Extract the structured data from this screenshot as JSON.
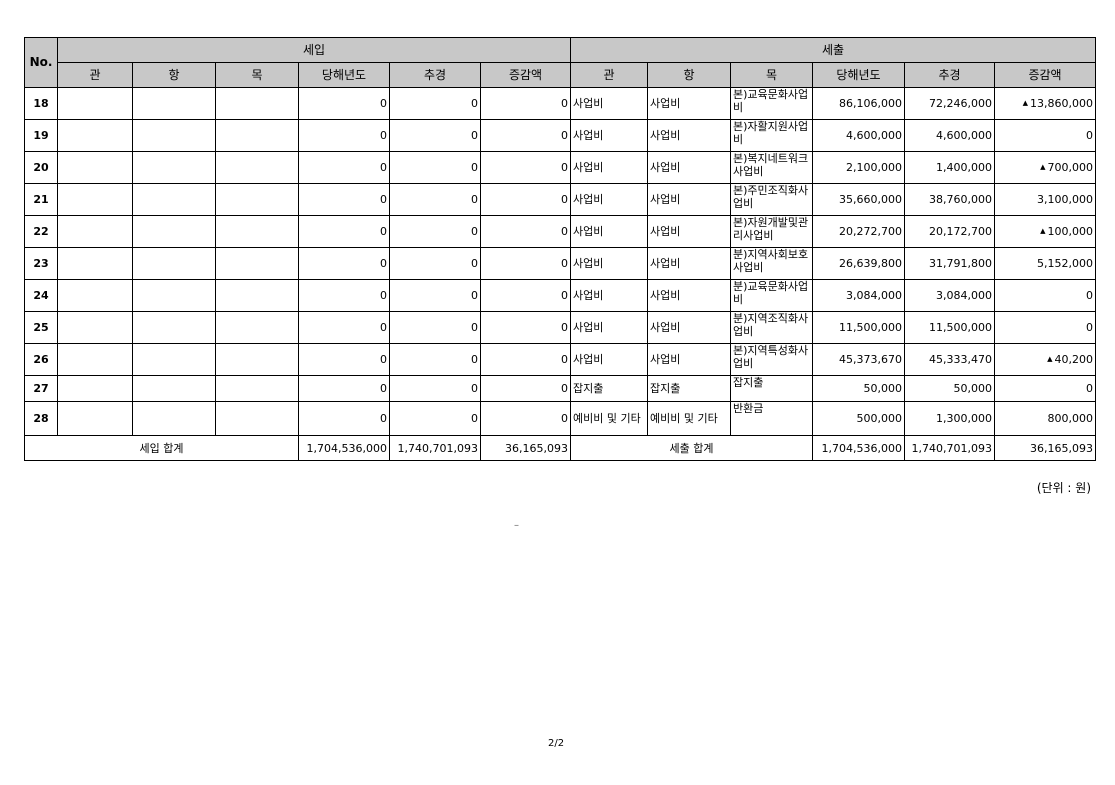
{
  "header": {
    "no": "No.",
    "income": "세입",
    "expense": "세출",
    "cols": [
      "관",
      "항",
      "목",
      "당해년도",
      "추경",
      "증감액"
    ]
  },
  "rows": [
    {
      "no": "18",
      "in_cur": "0",
      "in_sup": "0",
      "in_diff": "0",
      "gwan": "사업비",
      "hang": "사업비",
      "mok": "본)교육문화사업비",
      "cur": "86,106,000",
      "sup": "72,246,000",
      "diff": "13,860,000",
      "dec": true
    },
    {
      "no": "19",
      "in_cur": "0",
      "in_sup": "0",
      "in_diff": "0",
      "gwan": "사업비",
      "hang": "사업비",
      "mok": "본)자활지원사업비",
      "cur": "4,600,000",
      "sup": "4,600,000",
      "diff": "0",
      "dec": false
    },
    {
      "no": "20",
      "in_cur": "0",
      "in_sup": "0",
      "in_diff": "0",
      "gwan": "사업비",
      "hang": "사업비",
      "mok": "본)복지네트워크사업비",
      "cur": "2,100,000",
      "sup": "1,400,000",
      "diff": "700,000",
      "dec": true
    },
    {
      "no": "21",
      "in_cur": "0",
      "in_sup": "0",
      "in_diff": "0",
      "gwan": "사업비",
      "hang": "사업비",
      "mok": "본)주민조직화사업비",
      "cur": "35,660,000",
      "sup": "38,760,000",
      "diff": "3,100,000",
      "dec": false
    },
    {
      "no": "22",
      "in_cur": "0",
      "in_sup": "0",
      "in_diff": "0",
      "gwan": "사업비",
      "hang": "사업비",
      "mok": "본)자원개발및관리사업비",
      "cur": "20,272,700",
      "sup": "20,172,700",
      "diff": "100,000",
      "dec": true
    },
    {
      "no": "23",
      "in_cur": "0",
      "in_sup": "0",
      "in_diff": "0",
      "gwan": "사업비",
      "hang": "사업비",
      "mok": "분)지역사회보호사업비",
      "cur": "26,639,800",
      "sup": "31,791,800",
      "diff": "5,152,000",
      "dec": false
    },
    {
      "no": "24",
      "in_cur": "0",
      "in_sup": "0",
      "in_diff": "0",
      "gwan": "사업비",
      "hang": "사업비",
      "mok": "분)교육문화사업비",
      "cur": "3,084,000",
      "sup": "3,084,000",
      "diff": "0",
      "dec": false
    },
    {
      "no": "25",
      "in_cur": "0",
      "in_sup": "0",
      "in_diff": "0",
      "gwan": "사업비",
      "hang": "사업비",
      "mok": "분)지역조직화사업비",
      "cur": "11,500,000",
      "sup": "11,500,000",
      "diff": "0",
      "dec": false
    },
    {
      "no": "26",
      "in_cur": "0",
      "in_sup": "0",
      "in_diff": "0",
      "gwan": "사업비",
      "hang": "사업비",
      "mok": "본)지역특성화사업비",
      "cur": "45,373,670",
      "sup": "45,333,470",
      "diff": "40,200",
      "dec": true
    },
    {
      "no": "27",
      "in_cur": "0",
      "in_sup": "0",
      "in_diff": "0",
      "gwan": "잡지출",
      "hang": "잡지출",
      "mok": "잡지출",
      "cur": "50,000",
      "sup": "50,000",
      "diff": "0",
      "dec": false
    },
    {
      "no": "28",
      "in_cur": "0",
      "in_sup": "0",
      "in_diff": "0",
      "gwan": "예비비 및 기타",
      "hang": "예비비 및 기타",
      "mok": "반환금",
      "cur": "500,000",
      "sup": "1,300,000",
      "diff": "800,000",
      "dec": false
    }
  ],
  "totals": {
    "income_label": "세입 합계",
    "income_cur": "1,704,536,000",
    "income_sup": "1,740,701,093",
    "income_diff": "36,165,093",
    "expense_label": "세출 합계",
    "expense_cur": "1,704,536,000",
    "expense_sup": "1,740,701,093",
    "expense_diff": "36,165,093"
  },
  "decrease_marker": "▲",
  "unit_note": "(단위 : 원)",
  "dash": "–",
  "page_number": "2/2",
  "colors": {
    "header_bg": "#c8c8c8"
  }
}
